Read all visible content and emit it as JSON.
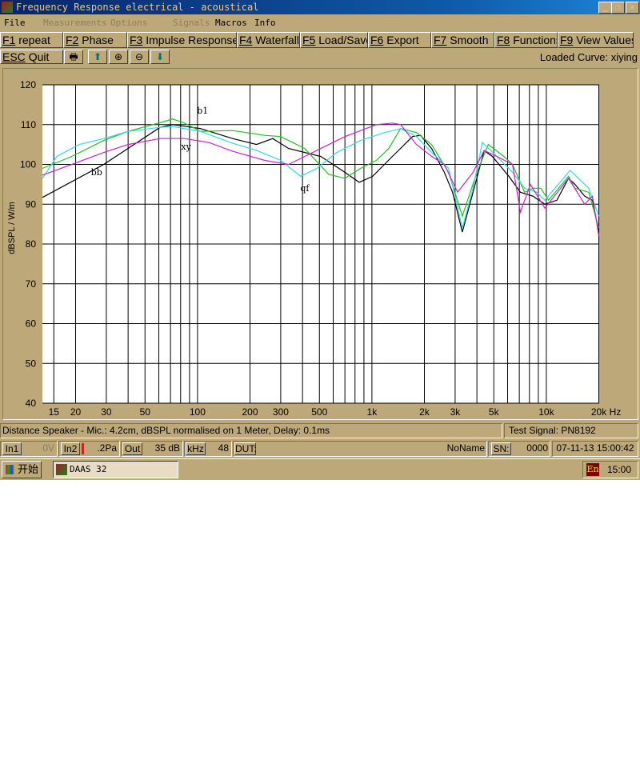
{
  "window": {
    "title": "Frequency Response electrical - acoustical",
    "min": "_",
    "restore": "❐",
    "close": "✕"
  },
  "menu": {
    "items": [
      {
        "label": "File",
        "enabled": true
      },
      {
        "label": "Measurements",
        "enabled": false
      },
      {
        "label": "Options",
        "enabled": false
      },
      {
        "label": "Signals",
        "enabled": false
      },
      {
        "label": "Macros",
        "enabled": true
      },
      {
        "label": "Info",
        "enabled": true
      }
    ]
  },
  "fkeys": [
    {
      "key": "F1",
      "label": "repeat"
    },
    {
      "key": "F2",
      "label": "Phase"
    },
    {
      "key": "F3",
      "label": "Impulse Response"
    },
    {
      "key": "F4",
      "label": "Waterfall"
    },
    {
      "key": "F5",
      "label": "Load/Save"
    },
    {
      "key": "F6",
      "label": "Export"
    },
    {
      "key": "F7",
      "label": "Smooth"
    },
    {
      "key": "F8",
      "label": "Functions"
    },
    {
      "key": "F9",
      "label": "View Values"
    }
  ],
  "toolbar": {
    "quit_key": "ESC",
    "quit_label": "Quit",
    "icons": [
      "print-icon",
      "arrow-up-icon",
      "zoom-in-icon",
      "zoom-out-icon",
      "arrow-down-icon"
    ],
    "loaded_curve": "Loaded Curve: xiying"
  },
  "chart_data": {
    "type": "line",
    "ylabel": "dBSPL / W/m",
    "xunit": "Hz",
    "xscale": "log",
    "xlim": [
      12.9,
      20100
    ],
    "ylim": [
      40,
      120
    ],
    "yticks": [
      40,
      50,
      60,
      70,
      80,
      90,
      100,
      110,
      120
    ],
    "xtick_labels": [
      {
        "v": 15,
        "t": "15"
      },
      {
        "v": 20,
        "t": "20"
      },
      {
        "v": 30,
        "t": "30"
      },
      {
        "v": 50,
        "t": "50"
      },
      {
        "v": 100,
        "t": "100"
      },
      {
        "v": 200,
        "t": "200"
      },
      {
        "v": 300,
        "t": "300"
      },
      {
        "v": 500,
        "t": "500"
      },
      {
        "v": 1000,
        "t": "1k"
      },
      {
        "v": 2000,
        "t": "2k"
      },
      {
        "v": 3000,
        "t": "3k"
      },
      {
        "v": 5000,
        "t": "5k"
      },
      {
        "v": 10000,
        "t": "10k"
      },
      {
        "v": 20000,
        "t": "20k"
      }
    ],
    "grid": true,
    "series": [
      {
        "color": "#000000",
        "points": [
          [
            12.9,
            91.7
          ],
          [
            29,
            100
          ],
          [
            61,
            109.3
          ],
          [
            72,
            110
          ],
          [
            104,
            109
          ],
          [
            159,
            106.5
          ],
          [
            218,
            105
          ],
          [
            270,
            106.5
          ],
          [
            333,
            104
          ],
          [
            509,
            102
          ],
          [
            700,
            98
          ],
          [
            845,
            95.5
          ],
          [
            1010,
            97
          ],
          [
            1310,
            102
          ],
          [
            1710,
            107
          ],
          [
            1900,
            107.3
          ],
          [
            2200,
            104
          ],
          [
            2600,
            98
          ],
          [
            2900,
            93
          ],
          [
            3300,
            83
          ],
          [
            3800,
            93
          ],
          [
            4400,
            103.5
          ],
          [
            4900,
            102
          ],
          [
            6100,
            97
          ],
          [
            7100,
            93
          ],
          [
            8400,
            92
          ],
          [
            9800,
            90
          ],
          [
            11500,
            91
          ],
          [
            13400,
            96.5
          ],
          [
            14600,
            95
          ],
          [
            16600,
            92
          ],
          [
            18400,
            91
          ],
          [
            20000,
            83
          ]
        ]
      },
      {
        "color": "#20c020",
        "points": [
          [
            12.9,
            99
          ],
          [
            19,
            102
          ],
          [
            29,
            106
          ],
          [
            40,
            108.3
          ],
          [
            61,
            110.5
          ],
          [
            72,
            111.4
          ],
          [
            84,
            110.4
          ],
          [
            104,
            108.3
          ],
          [
            159,
            108.5
          ],
          [
            243,
            107.3
          ],
          [
            300,
            107
          ],
          [
            412,
            104
          ],
          [
            565,
            97.5
          ],
          [
            700,
            96.5
          ],
          [
            861,
            99
          ],
          [
            1060,
            101
          ],
          [
            1250,
            104
          ],
          [
            1460,
            109
          ],
          [
            1800,
            108
          ],
          [
            2200,
            105
          ],
          [
            2750,
            98
          ],
          [
            3300,
            87
          ],
          [
            4000,
            98
          ],
          [
            4650,
            105
          ],
          [
            5700,
            102
          ],
          [
            6400,
            100
          ],
          [
            7500,
            93
          ],
          [
            8400,
            94
          ],
          [
            9300,
            94
          ],
          [
            10300,
            91
          ],
          [
            13400,
            97
          ],
          [
            14600,
            94
          ],
          [
            17500,
            93
          ],
          [
            20000,
            84
          ]
        ]
      },
      {
        "color": "#30d8e8",
        "points": [
          [
            12.9,
            96.5
          ],
          [
            15.6,
            102
          ],
          [
            21,
            105
          ],
          [
            29,
            106.5
          ],
          [
            40,
            108.3
          ],
          [
            61,
            109.3
          ],
          [
            72,
            109.5
          ],
          [
            104,
            108.3
          ],
          [
            159,
            105.3
          ],
          [
            218,
            103.5
          ],
          [
            300,
            101
          ],
          [
            390,
            97
          ],
          [
            483,
            99
          ],
          [
            627,
            103
          ],
          [
            861,
            106
          ],
          [
            1180,
            108
          ],
          [
            1460,
            109
          ],
          [
            1800,
            107
          ],
          [
            2200,
            103
          ],
          [
            2750,
            99
          ],
          [
            3300,
            84
          ],
          [
            3800,
            94
          ],
          [
            4300,
            105.5
          ],
          [
            5200,
            102
          ],
          [
            6400,
            98
          ],
          [
            7500,
            94
          ],
          [
            8800,
            93
          ],
          [
            9800,
            91
          ],
          [
            13700,
            98.5
          ],
          [
            17500,
            94
          ],
          [
            20000,
            87
          ]
        ]
      },
      {
        "color": "#d020d0",
        "points": [
          [
            12.9,
            97.3
          ],
          [
            19,
            100
          ],
          [
            29,
            103
          ],
          [
            40,
            105
          ],
          [
            61,
            106.5
          ],
          [
            84,
            106.5
          ],
          [
            116,
            105.5
          ],
          [
            159,
            103.3
          ],
          [
            243,
            101
          ],
          [
            333,
            100
          ],
          [
            509,
            104
          ],
          [
            700,
            107
          ],
          [
            1060,
            110
          ],
          [
            1310,
            110.4
          ],
          [
            1460,
            110
          ],
          [
            1800,
            105
          ],
          [
            2200,
            102
          ],
          [
            2600,
            100
          ],
          [
            3100,
            93
          ],
          [
            3800,
            98
          ],
          [
            4400,
            103.5
          ],
          [
            5200,
            102
          ],
          [
            6400,
            100
          ],
          [
            7100,
            88
          ],
          [
            8100,
            95
          ],
          [
            9800,
            89
          ],
          [
            13400,
            96.5
          ],
          [
            16600,
            90
          ],
          [
            18400,
            92
          ],
          [
            20000,
            82
          ]
        ]
      }
    ],
    "annotations": [
      {
        "text": "bb",
        "x": 26.4,
        "y": 97.3
      },
      {
        "text": "b1",
        "x": 107,
        "y": 112.8
      },
      {
        "text": "xy",
        "x": 86,
        "y": 103.7
      },
      {
        "text": "qf",
        "x": 412,
        "y": 93.3
      }
    ]
  },
  "status": {
    "info": "Distance Speaker - Mic.: 4.2cm, dBSPL normalised on 1 Meter, Delay: 0.1ms",
    "signal": "Test Signal: PN8192",
    "in1": "In1",
    "in1_val": "0V",
    "in2": "In2",
    "in2_val": ".2Pa",
    "out": "Out",
    "out_val": "35 dB",
    "khz": "kHz",
    "khz_val": "48",
    "dut": "DUT:",
    "dut_name": "NoName",
    "sn": "SN:",
    "sn_val": "0000",
    "datetime": "07-11-13  15:00:42"
  },
  "taskbar": {
    "start": "开始",
    "task": "DAAS 32",
    "lang": "En",
    "clock": "15:00"
  },
  "colors": {
    "face": "#bda87a",
    "title_start": "#0a246a",
    "title_end": "#1e86d8"
  }
}
